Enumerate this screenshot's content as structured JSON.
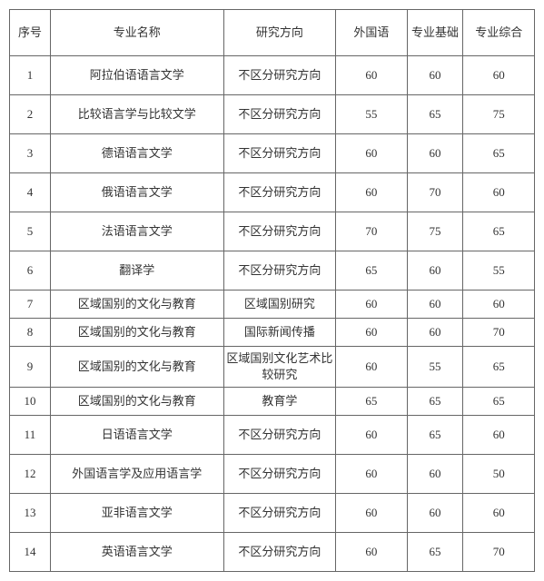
{
  "headers": {
    "idx": "序号",
    "major": "专业名称",
    "dir": "研究方向",
    "lang": "外国语",
    "base": "专业基础",
    "comp": "专业综合"
  },
  "rows": [
    {
      "idx": "1",
      "major": "阿拉伯语语言文学",
      "dir": "不区分研究方向",
      "lang": "60",
      "base": "60",
      "comp": "60",
      "h": "tall"
    },
    {
      "idx": "2",
      "major": "比较语言学与比较文学",
      "dir": "不区分研究方向",
      "lang": "55",
      "base": "65",
      "comp": "75",
      "h": "tall"
    },
    {
      "idx": "3",
      "major": "德语语言文学",
      "dir": "不区分研究方向",
      "lang": "60",
      "base": "60",
      "comp": "65",
      "h": "tall"
    },
    {
      "idx": "4",
      "major": "俄语语言文学",
      "dir": "不区分研究方向",
      "lang": "60",
      "base": "70",
      "comp": "60",
      "h": "tall"
    },
    {
      "idx": "5",
      "major": "法语语言文学",
      "dir": "不区分研究方向",
      "lang": "70",
      "base": "75",
      "comp": "65",
      "h": "tall"
    },
    {
      "idx": "6",
      "major": "翻译学",
      "dir": "不区分研究方向",
      "lang": "65",
      "base": "60",
      "comp": "55",
      "h": "tall"
    },
    {
      "idx": "7",
      "major": "区域国别的文化与教育",
      "dir": "区域国别研究",
      "lang": "60",
      "base": "60",
      "comp": "60",
      "h": "short"
    },
    {
      "idx": "8",
      "major": "区域国别的文化与教育",
      "dir": "国际新闻传播",
      "lang": "60",
      "base": "60",
      "comp": "70",
      "h": "short"
    },
    {
      "idx": "9",
      "major": "区域国别的文化与教育",
      "dir": "区域国别文化艺术比较研究",
      "lang": "60",
      "base": "55",
      "comp": "65",
      "h": "tall"
    },
    {
      "idx": "10",
      "major": "区域国别的文化与教育",
      "dir": "教育学",
      "lang": "65",
      "base": "65",
      "comp": "65",
      "h": "short"
    },
    {
      "idx": "11",
      "major": "日语语言文学",
      "dir": "不区分研究方向",
      "lang": "60",
      "base": "65",
      "comp": "60",
      "h": "tall"
    },
    {
      "idx": "12",
      "major": "外国语言学及应用语言学",
      "dir": "不区分研究方向",
      "lang": "60",
      "base": "60",
      "comp": "50",
      "h": "tall"
    },
    {
      "idx": "13",
      "major": "亚非语言文学",
      "dir": "不区分研究方向",
      "lang": "60",
      "base": "60",
      "comp": "60",
      "h": "tall"
    },
    {
      "idx": "14",
      "major": "英语语言文学",
      "dir": "不区分研究方向",
      "lang": "60",
      "base": "65",
      "comp": "70",
      "h": "tall"
    }
  ]
}
